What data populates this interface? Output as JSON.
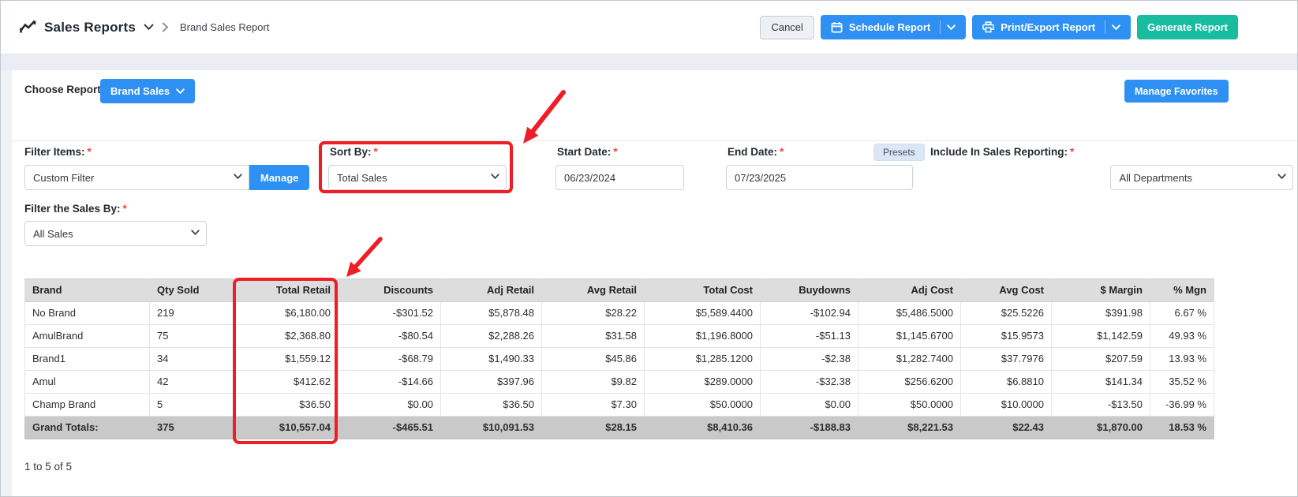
{
  "colors": {
    "accent-blue": "#2e90f2",
    "teal": "#17bd9e",
    "annotation-red": "#ef1d25",
    "header-gray": "#dddddd",
    "totals-gray": "#c9c9c9"
  },
  "header": {
    "title": "Sales Reports",
    "breadcrumb": "Brand Sales Report",
    "buttons": {
      "cancel": "Cancel",
      "schedule": "Schedule Report",
      "print_export": "Print/Export Report",
      "generate": "Generate Report"
    }
  },
  "choose_report": {
    "label": "Choose Report",
    "selected_report": "Brand Sales",
    "manage_favorites": "Manage Favorites"
  },
  "required_mark": "*",
  "filters": {
    "filter_items": {
      "label": "Filter Items:",
      "value": "Custom Filter",
      "manage": "Manage"
    },
    "sort_by": {
      "label": "Sort By:",
      "value": "Total Sales"
    },
    "start_date": {
      "label": "Start Date:",
      "value": "06/23/2024"
    },
    "end_date": {
      "label": "End Date:",
      "value": "07/23/2025"
    },
    "presets": "Presets",
    "include_in_sales_reporting": {
      "label": "Include In Sales Reporting:",
      "value": "All Departments"
    },
    "filter_sales_by": {
      "label": "Filter the Sales By:",
      "value": "All Sales"
    }
  },
  "table": {
    "columns": [
      "Brand",
      "Qty Sold",
      "Total Retail",
      "Discounts",
      "Adj Retail",
      "Avg Retail",
      "Total Cost",
      "Buydowns",
      "Adj Cost",
      "Avg Cost",
      "$ Margin",
      "% Mgn"
    ],
    "rows": [
      [
        "No Brand",
        "219",
        "$6,180.00",
        "-$301.52",
        "$5,878.48",
        "$28.22",
        "$5,589.4400",
        "-$102.94",
        "$5,486.5000",
        "$25.5226",
        "$391.98",
        "6.67 %"
      ],
      [
        "AmulBrand",
        "75",
        "$2,368.80",
        "-$80.54",
        "$2,288.26",
        "$31.58",
        "$1,196.8000",
        "-$51.13",
        "$1,145.6700",
        "$15.9573",
        "$1,142.59",
        "49.93 %"
      ],
      [
        "Brand1",
        "34",
        "$1,559.12",
        "-$68.79",
        "$1,490.33",
        "$45.86",
        "$1,285.1200",
        "-$2.38",
        "$1,282.7400",
        "$37.7976",
        "$207.59",
        "13.93 %"
      ],
      [
        "Amul",
        "42",
        "$412.62",
        "-$14.66",
        "$397.96",
        "$9.82",
        "$289.0000",
        "-$32.38",
        "$256.6200",
        "$6.8810",
        "$141.34",
        "35.52 %"
      ],
      [
        "Champ Brand",
        "5",
        "$36.50",
        "$0.00",
        "$36.50",
        "$7.30",
        "$50.0000",
        "$0.00",
        "$50.0000",
        "$10.0000",
        "-$13.50",
        "-36.99 %"
      ]
    ],
    "grand_totals": [
      "Grand Totals:",
      "375",
      "$10,557.04",
      "-$465.51",
      "$10,091.53",
      "$28.15",
      "$8,410.36",
      "-$188.83",
      "$8,221.53",
      "$22.43",
      "$1,870.00",
      "18.53 %"
    ],
    "pagination": "1 to 5 of 5"
  }
}
